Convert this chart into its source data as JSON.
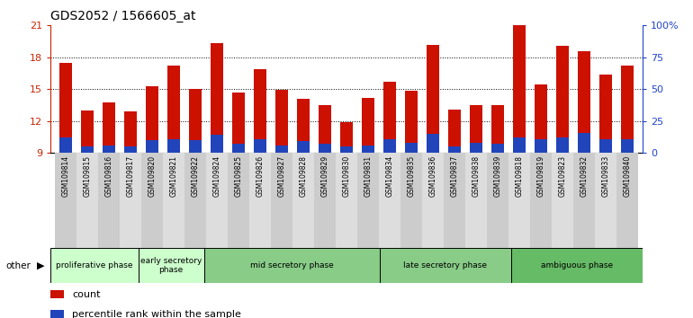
{
  "title": "GDS2052 / 1566605_at",
  "samples": [
    "GSM109814",
    "GSM109815",
    "GSM109816",
    "GSM109817",
    "GSM109820",
    "GSM109821",
    "GSM109822",
    "GSM109824",
    "GSM109825",
    "GSM109826",
    "GSM109827",
    "GSM109828",
    "GSM109829",
    "GSM109830",
    "GSM109831",
    "GSM109834",
    "GSM109835",
    "GSM109836",
    "GSM109837",
    "GSM109838",
    "GSM109839",
    "GSM109818",
    "GSM109819",
    "GSM109823",
    "GSM109832",
    "GSM109833",
    "GSM109840"
  ],
  "count_values": [
    17.5,
    13.0,
    13.7,
    12.9,
    15.3,
    17.2,
    15.0,
    19.3,
    14.7,
    16.9,
    14.9,
    14.1,
    13.5,
    11.9,
    14.2,
    15.7,
    14.8,
    19.2,
    13.1,
    13.5,
    13.5,
    21.0,
    15.4,
    19.1,
    18.6,
    16.4,
    17.2
  ],
  "percentile_values": [
    10.4,
    9.6,
    9.7,
    9.6,
    10.2,
    10.3,
    10.2,
    10.7,
    9.8,
    10.3,
    9.7,
    10.1,
    9.8,
    9.6,
    9.7,
    10.3,
    9.9,
    10.8,
    9.6,
    9.9,
    9.8,
    10.4,
    10.3,
    10.4,
    10.9,
    10.3,
    10.3
  ],
  "groups": [
    {
      "label": "proliferative phase",
      "start": 0,
      "end": 4,
      "color": "#ccffcc"
    },
    {
      "label": "early secretory\nphase",
      "start": 4,
      "end": 7,
      "color": "#ccffcc"
    },
    {
      "label": "mid secretory phase",
      "start": 7,
      "end": 15,
      "color": "#88cc88"
    },
    {
      "label": "late secretory phase",
      "start": 15,
      "end": 21,
      "color": "#88cc88"
    },
    {
      "label": "ambiguous phase",
      "start": 21,
      "end": 27,
      "color": "#66bb66"
    }
  ],
  "group_dividers": [
    4,
    7,
    15,
    21
  ],
  "ylim_left": [
    9,
    21
  ],
  "yticks_left": [
    9,
    12,
    15,
    18,
    21
  ],
  "ytick_labels_left": [
    "9",
    "12",
    "15",
    "18",
    "21"
  ],
  "yticks_right_pct": [
    0,
    25,
    50,
    75,
    100
  ],
  "ytick_labels_right": [
    "0",
    "25",
    "50",
    "75",
    "100%"
  ],
  "bar_width": 0.55,
  "count_color": "#cc1100",
  "percentile_color": "#2244bb",
  "bg_color": "#ffffff",
  "tick_color_left": "#cc2200",
  "tick_color_right": "#2244cc",
  "grid_color": "#000000"
}
